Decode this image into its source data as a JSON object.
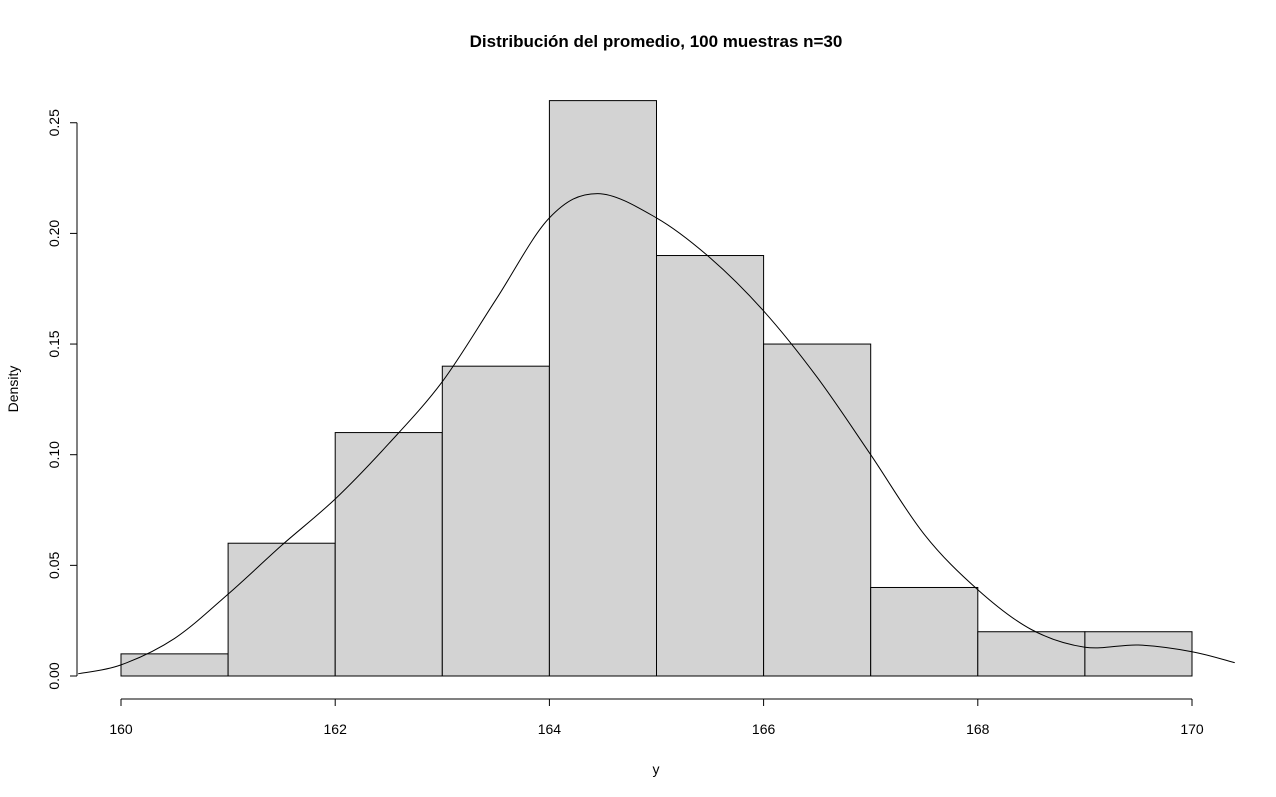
{
  "chart_data": {
    "type": "bar",
    "subtype": "histogram with density curve",
    "title": "Distribución del promedio, 100 muestras n=30",
    "xlabel": "y",
    "ylabel": "Density",
    "xlim": [
      160,
      170
    ],
    "ylim": [
      0,
      0.25
    ],
    "x_ticks": [
      "160",
      "162",
      "164",
      "166",
      "168",
      "170"
    ],
    "y_ticks": [
      "0.00",
      "0.05",
      "0.10",
      "0.15",
      "0.20",
      "0.25"
    ],
    "grid": false,
    "legend": "none",
    "bins": [
      {
        "from": 160,
        "to": 161,
        "density": 0.01
      },
      {
        "from": 161,
        "to": 162,
        "density": 0.06
      },
      {
        "from": 162,
        "to": 163,
        "density": 0.11
      },
      {
        "from": 163,
        "to": 164,
        "density": 0.14
      },
      {
        "from": 164,
        "to": 165,
        "density": 0.26
      },
      {
        "from": 165,
        "to": 166,
        "density": 0.19
      },
      {
        "from": 166,
        "to": 167,
        "density": 0.15
      },
      {
        "from": 167,
        "to": 168,
        "density": 0.04
      },
      {
        "from": 168,
        "to": 169,
        "density": 0.02
      },
      {
        "from": 169,
        "to": 170,
        "density": 0.02
      }
    ],
    "density_curve": {
      "x": [
        159.6,
        160.0,
        160.5,
        161.0,
        161.5,
        162.0,
        162.5,
        163.0,
        163.5,
        164.0,
        164.45,
        165.0,
        165.5,
        166.0,
        166.5,
        167.0,
        167.5,
        168.0,
        168.5,
        169.0,
        169.5,
        170.0,
        170.4
      ],
      "y": [
        0.001,
        0.005,
        0.017,
        0.037,
        0.059,
        0.08,
        0.105,
        0.133,
        0.17,
        0.207,
        0.218,
        0.207,
        0.189,
        0.165,
        0.135,
        0.1,
        0.064,
        0.039,
        0.021,
        0.013,
        0.014,
        0.011,
        0.006
      ]
    },
    "colors": {
      "bar_fill": "#d3d3d3",
      "stroke": "#000000"
    }
  }
}
